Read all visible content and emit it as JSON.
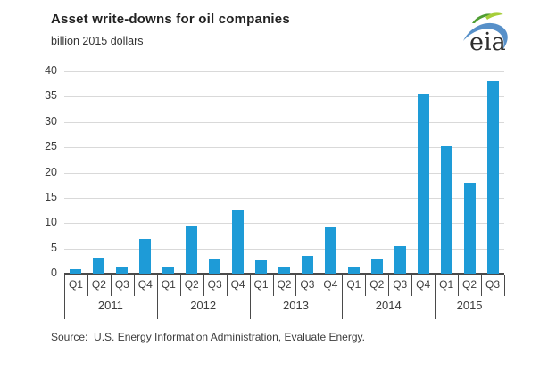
{
  "header": {
    "title": "Asset write-downs for oil companies",
    "subtitle": "billion 2015 dollars"
  },
  "logo": {
    "text": "eia"
  },
  "source": "Source:  U.S. Energy Information Administration, Evaluate Energy.",
  "colors": {
    "bar": "#1E9BD7",
    "gridline": "#d9d9d9",
    "axis": "#4a4a4a",
    "text": "#3d3d3d",
    "logo_green": "#4f9e33",
    "logo_yellow": "#a6ce39",
    "logo_blue": "#3a7dc0"
  },
  "chart_data": {
    "type": "bar",
    "title": "Asset write-downs for oil companies",
    "xlabel": "",
    "ylabel": "billion 2015 dollars",
    "ylim": [
      0,
      40
    ],
    "yticks": [
      0,
      5,
      10,
      15,
      20,
      25,
      30,
      35,
      40
    ],
    "grid": true,
    "legend": false,
    "categories": [
      "2011 Q1",
      "2011 Q2",
      "2011 Q3",
      "2011 Q4",
      "2012 Q1",
      "2012 Q2",
      "2012 Q3",
      "2012 Q4",
      "2013 Q1",
      "2013 Q2",
      "2013 Q3",
      "2013 Q4",
      "2014 Q1",
      "2014 Q2",
      "2014 Q3",
      "2014 Q4",
      "2015 Q1",
      "2015 Q2",
      "2015 Q3"
    ],
    "values": [
      0.8,
      3.1,
      1.3,
      6.8,
      1.4,
      9.5,
      2.9,
      12.5,
      2.6,
      1.3,
      3.5,
      9.2,
      1.2,
      3.0,
      5.5,
      35.6,
      25.2,
      18.0,
      38.1
    ],
    "years": [
      {
        "label": "2011",
        "quarters": [
          "Q1",
          "Q2",
          "Q3",
          "Q4"
        ]
      },
      {
        "label": "2012",
        "quarters": [
          "Q1",
          "Q2",
          "Q3",
          "Q4"
        ]
      },
      {
        "label": "2013",
        "quarters": [
          "Q1",
          "Q2",
          "Q3",
          "Q4"
        ]
      },
      {
        "label": "2014",
        "quarters": [
          "Q1",
          "Q2",
          "Q3",
          "Q4"
        ]
      },
      {
        "label": "2015",
        "quarters": [
          "Q1",
          "Q2",
          "Q3"
        ]
      }
    ]
  }
}
